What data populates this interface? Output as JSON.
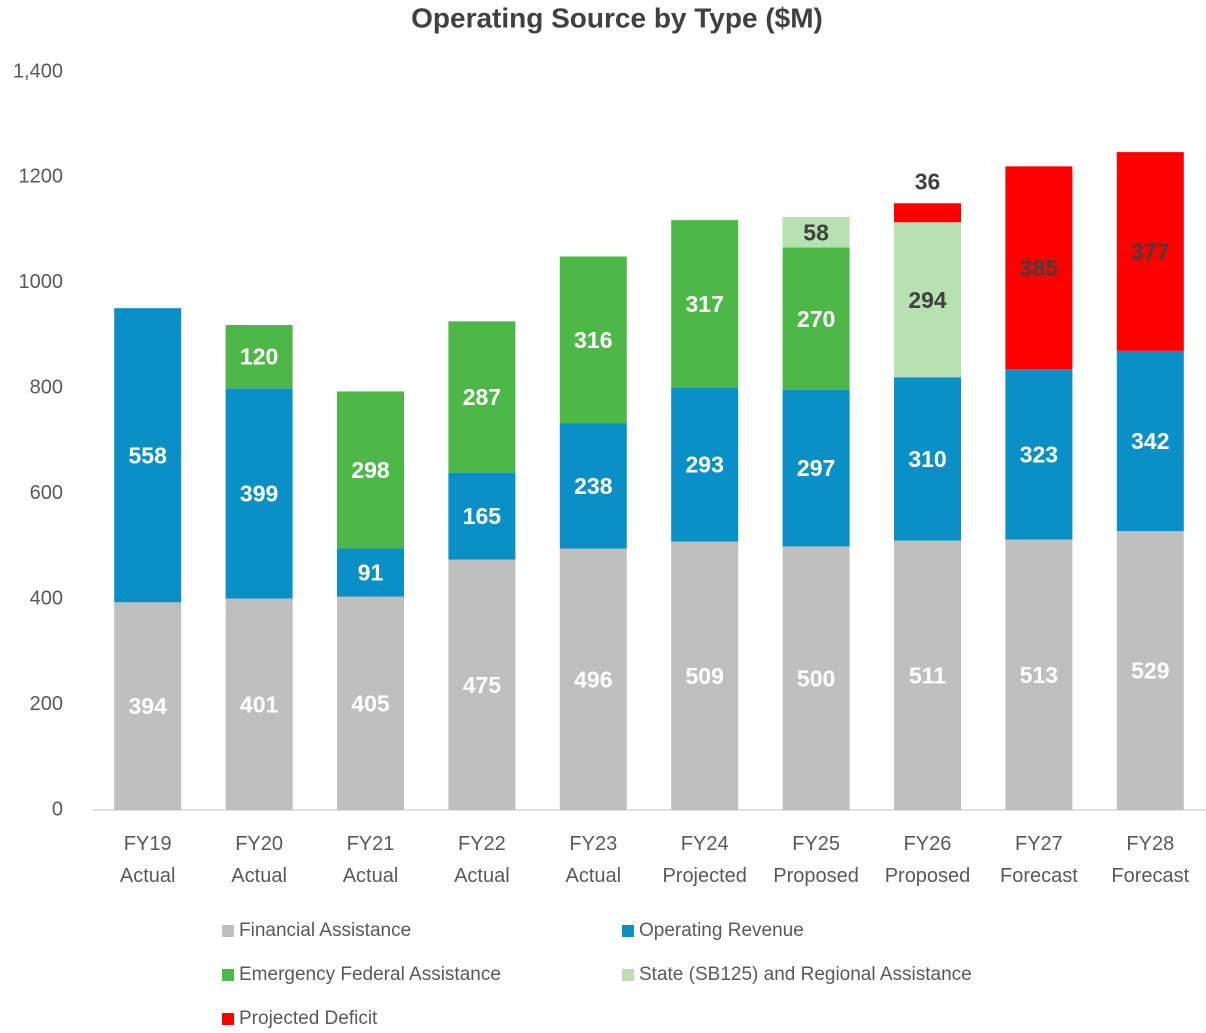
{
  "chart_data": {
    "type": "stacked_bar",
    "title": "Operating Source by Type ($M)",
    "categories": [
      [
        "FY19",
        "Actual"
      ],
      [
        "FY20",
        "Actual"
      ],
      [
        "FY21",
        "Actual"
      ],
      [
        "FY22",
        "Actual"
      ],
      [
        "FY23",
        "Actual"
      ],
      [
        "FY24",
        "Projected"
      ],
      [
        "FY25",
        "Proposed"
      ],
      [
        "FY26",
        "Proposed"
      ],
      [
        "FY27",
        "Forecast"
      ],
      [
        "FY28",
        "Forecast"
      ]
    ],
    "series": [
      {
        "name": "Financial Assistance",
        "color": "#bfbfbf",
        "label_color": "#ffffff",
        "values": [
          394,
          401,
          405,
          475,
          496,
          509,
          500,
          511,
          513,
          529
        ]
      },
      {
        "name": "Operating Revenue",
        "color": "#0a8fc6",
        "label_color": "#ffffff",
        "values": [
          558,
          399,
          91,
          165,
          238,
          293,
          297,
          310,
          323,
          342
        ]
      },
      {
        "name": "Emergency Federal Assistance",
        "color": "#4db848",
        "label_color": "#ffffff",
        "values": [
          null,
          120,
          298,
          287,
          316,
          317,
          270,
          null,
          null,
          null
        ]
      },
      {
        "name": "State (SB125) and Regional Assistance",
        "color": "#b7e1b0",
        "label_color": "#404040",
        "values": [
          null,
          null,
          null,
          null,
          null,
          null,
          58,
          294,
          null,
          null
        ]
      },
      {
        "name": "Projected Deficit",
        "color": "#ff0000",
        "label_color": "#404040",
        "values": [
          null,
          null,
          null,
          null,
          null,
          null,
          null,
          36,
          385,
          377
        ]
      }
    ],
    "ylim": [
      0,
      1400
    ],
    "yticks": [
      0,
      200,
      400,
      600,
      800,
      1000,
      1200,
      {
        "value": 1400,
        "label": "1,400"
      }
    ],
    "legend": "bottom"
  }
}
